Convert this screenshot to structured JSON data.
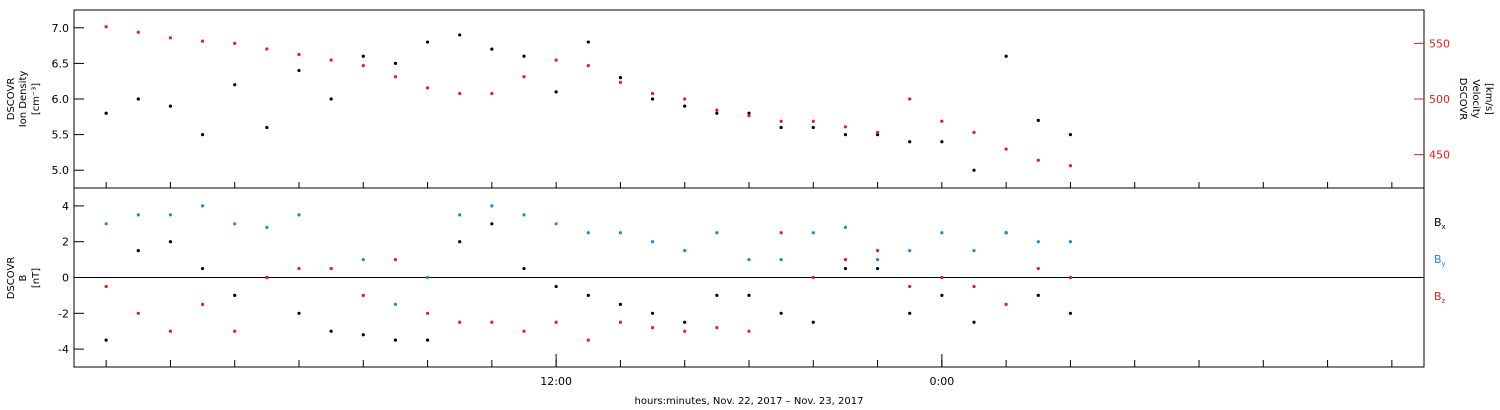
{
  "chart_data": [
    {
      "type": "scatter",
      "panel": "top",
      "left_axis": {
        "label_lines": [
          "DSCOVR",
          "Ion Density",
          "[cm⁻³]"
        ],
        "ylim": [
          4.75,
          7.25
        ],
        "ticks": [
          5.0,
          5.5,
          6.0,
          6.5,
          7.0
        ],
        "tick_labels": [
          "5.0",
          "5.5",
          "6.0",
          "6.5",
          "7.0"
        ],
        "color": "#000000"
      },
      "right_axis": {
        "label_lines": [
          "DSCOVR",
          "Velocity",
          "[km/s]"
        ],
        "ylim": [
          420,
          580
        ],
        "ticks": [
          450,
          500,
          550
        ],
        "tick_labels": [
          "450",
          "500",
          "550"
        ],
        "color": "#e02020"
      },
      "series": [
        {
          "axis": "left",
          "color": "#000000",
          "points": [
            [
              -2.0,
              5.8
            ],
            [
              -1.0,
              6.0
            ],
            [
              0.0,
              5.9
            ],
            [
              1.0,
              5.5
            ],
            [
              2.0,
              6.2
            ],
            [
              3.0,
              5.6
            ],
            [
              4.0,
              6.4
            ],
            [
              5.0,
              6.0
            ],
            [
              6.0,
              6.6
            ],
            [
              7.0,
              6.5
            ],
            [
              8.0,
              6.8
            ],
            [
              9.0,
              6.9
            ],
            [
              10.0,
              6.7
            ],
            [
              11.0,
              6.6
            ],
            [
              12.0,
              6.1
            ],
            [
              13.0,
              6.8
            ],
            [
              14.0,
              6.3
            ],
            [
              15.0,
              6.0
            ],
            [
              16.0,
              5.9
            ],
            [
              17.0,
              5.8
            ],
            [
              18.0,
              5.8
            ],
            [
              19.0,
              5.6
            ],
            [
              20.0,
              5.6
            ],
            [
              21.0,
              5.5
            ],
            [
              22.0,
              5.5
            ],
            [
              23.0,
              5.4
            ],
            [
              24.0,
              5.4
            ],
            [
              25.0,
              5.0
            ],
            [
              26.0,
              6.6
            ],
            [
              27.0,
              5.7
            ],
            [
              28.0,
              5.5
            ]
          ]
        },
        {
          "axis": "right",
          "color": "#e02020",
          "points": [
            [
              -2.0,
              565
            ],
            [
              -1.0,
              560
            ],
            [
              0.0,
              555
            ],
            [
              1.0,
              552
            ],
            [
              2.0,
              550
            ],
            [
              3.0,
              545
            ],
            [
              4.0,
              540
            ],
            [
              5.0,
              535
            ],
            [
              6.0,
              530
            ],
            [
              7.0,
              520
            ],
            [
              8.0,
              510
            ],
            [
              9.0,
              505
            ],
            [
              10.0,
              505
            ],
            [
              11.0,
              520
            ],
            [
              12.0,
              535
            ],
            [
              13.0,
              530
            ],
            [
              14.0,
              515
            ],
            [
              15.0,
              505
            ],
            [
              16.0,
              500
            ],
            [
              17.0,
              490
            ],
            [
              18.0,
              485
            ],
            [
              19.0,
              480
            ],
            [
              20.0,
              480
            ],
            [
              21.0,
              475
            ],
            [
              22.0,
              470
            ],
            [
              23.0,
              500
            ],
            [
              24.0,
              480
            ],
            [
              25.0,
              470
            ],
            [
              26.0,
              455
            ],
            [
              27.0,
              445
            ],
            [
              28.0,
              440
            ]
          ]
        }
      ]
    },
    {
      "type": "scatter",
      "panel": "bottom",
      "left_axis": {
        "label_lines": [
          "DSCOVR",
          "B",
          "[nT]"
        ],
        "ylim": [
          -5,
          5
        ],
        "ticks": [
          -4,
          -2,
          0,
          2,
          4
        ],
        "tick_labels": [
          "-4",
          "-2",
          "0",
          "2",
          "4"
        ],
        "color": "#000000"
      },
      "zero_line": true,
      "series": [
        {
          "name": "Bx",
          "color": "#000000",
          "points": [
            [
              -2.0,
              -3.5
            ],
            [
              -1.0,
              1.5
            ],
            [
              0.0,
              2.0
            ],
            [
              1.0,
              0.5
            ],
            [
              2.0,
              -1.0
            ],
            [
              3.0,
              0.0
            ],
            [
              4.0,
              -2.0
            ],
            [
              5.0,
              -3.0
            ],
            [
              6.0,
              -3.2
            ],
            [
              7.0,
              -3.5
            ],
            [
              8.0,
              -3.5
            ],
            [
              9.0,
              2.0
            ],
            [
              10.0,
              3.0
            ],
            [
              11.0,
              0.5
            ],
            [
              12.0,
              -0.5
            ],
            [
              13.0,
              -1.0
            ],
            [
              14.0,
              -1.5
            ],
            [
              15.0,
              -2.0
            ],
            [
              16.0,
              -2.5
            ],
            [
              17.0,
              -1.0
            ],
            [
              18.0,
              -1.0
            ],
            [
              19.0,
              -2.0
            ],
            [
              20.0,
              -2.5
            ],
            [
              21.0,
              0.5
            ],
            [
              22.0,
              0.5
            ],
            [
              23.0,
              -2.0
            ],
            [
              24.0,
              -1.0
            ],
            [
              25.0,
              -2.5
            ],
            [
              26.0,
              2.5
            ],
            [
              27.0,
              -1.0
            ],
            [
              28.0,
              -2.0
            ]
          ]
        },
        {
          "name": "By",
          "color": "#1a8ad8",
          "points": [
            [
              -2.0,
              3.0
            ],
            [
              -1.0,
              3.5
            ],
            [
              0.0,
              3.5
            ],
            [
              1.0,
              4.0
            ],
            [
              2.0,
              3.0
            ],
            [
              3.0,
              2.8
            ],
            [
              4.0,
              3.5
            ],
            [
              5.0,
              0.5
            ],
            [
              6.0,
              1.0
            ],
            [
              7.0,
              -1.5
            ],
            [
              8.0,
              0.0
            ],
            [
              9.0,
              3.5
            ],
            [
              10.0,
              4.0
            ],
            [
              11.0,
              3.5
            ],
            [
              12.0,
              3.0
            ],
            [
              13.0,
              2.5
            ],
            [
              14.0,
              2.5
            ],
            [
              15.0,
              2.0
            ],
            [
              16.0,
              1.5
            ],
            [
              17.0,
              2.5
            ],
            [
              18.0,
              1.0
            ],
            [
              19.0,
              1.0
            ],
            [
              20.0,
              2.5
            ],
            [
              21.0,
              2.8
            ],
            [
              22.0,
              1.0
            ],
            [
              23.0,
              1.5
            ],
            [
              24.0,
              2.5
            ],
            [
              25.0,
              1.5
            ],
            [
              26.0,
              2.5
            ],
            [
              27.0,
              2.0
            ],
            [
              28.0,
              2.0
            ]
          ]
        },
        {
          "name": "Bz",
          "color": "#e02020",
          "points": [
            [
              -2.0,
              -0.5
            ],
            [
              -1.0,
              -2.0
            ],
            [
              0.0,
              -3.0
            ],
            [
              1.0,
              -1.5
            ],
            [
              2.0,
              -3.0
            ],
            [
              3.0,
              0.0
            ],
            [
              4.0,
              0.5
            ],
            [
              5.0,
              0.5
            ],
            [
              6.0,
              -1.0
            ],
            [
              7.0,
              1.0
            ],
            [
              8.0,
              -2.0
            ],
            [
              9.0,
              -2.5
            ],
            [
              10.0,
              -2.5
            ],
            [
              11.0,
              -3.0
            ],
            [
              12.0,
              -2.5
            ],
            [
              13.0,
              -3.5
            ],
            [
              14.0,
              -2.5
            ],
            [
              15.0,
              -2.8
            ],
            [
              16.0,
              -3.0
            ],
            [
              17.0,
              -2.8
            ],
            [
              18.0,
              -3.0
            ],
            [
              19.0,
              2.5
            ],
            [
              20.0,
              0.0
            ],
            [
              21.0,
              1.0
            ],
            [
              22.0,
              1.5
            ],
            [
              23.0,
              -0.5
            ],
            [
              24.0,
              0.0
            ],
            [
              25.0,
              -0.5
            ],
            [
              26.0,
              -1.5
            ],
            [
              27.0,
              0.5
            ],
            [
              28.0,
              0.0
            ]
          ]
        }
      ],
      "legend": {
        "placement": "right",
        "entries": [
          {
            "base": "B",
            "sub": "x",
            "color": "#000000"
          },
          {
            "base": "B",
            "sub": "y",
            "color": "#1a8ad8"
          },
          {
            "base": "B",
            "sub": "z",
            "color": "#e02020"
          }
        ]
      }
    }
  ],
  "x_axis": {
    "unit": "hours",
    "xlim": [
      -3.0,
      39.0
    ],
    "minor_ticks": [
      -2.0,
      0.0,
      2.0,
      4.0,
      6.0,
      8.0,
      10.0,
      12.0,
      14.0,
      16.0,
      18.0,
      20.0,
      22.0,
      24.0,
      26.0,
      28.0,
      30.0,
      32.0,
      34.0,
      36.0,
      38.0
    ],
    "labeled_ticks": [
      {
        "x": 12.0,
        "label": "12:00"
      },
      {
        "x": 24.0,
        "label": "0:00"
      }
    ],
    "title": "hours:minutes, Nov. 22, 2017 – Nov. 23, 2017"
  }
}
